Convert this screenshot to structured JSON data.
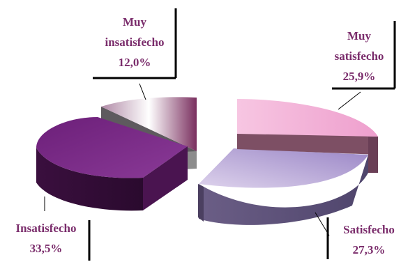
{
  "chart_data": {
    "type": "pie",
    "style": "3d-exploded",
    "slices": [
      {
        "label_lines": [
          "Muy",
          "satisfecho"
        ],
        "value_text": "25,9%",
        "value": 25.9,
        "color": "#f3b2d6"
      },
      {
        "label_lines": [
          "Satisfecho"
        ],
        "value_text": "27,3%",
        "value": 27.3,
        "color": "#b7a3d9"
      },
      {
        "label_lines": [
          "Insatisfecho"
        ],
        "value_text": "33,5%",
        "value": 33.5,
        "color": "#7b2a86"
      },
      {
        "label_lines": [
          "Muy",
          "insatisfecho"
        ],
        "value_text": "12,0%",
        "value": 12.0,
        "color": "#efe8ef"
      }
    ]
  }
}
